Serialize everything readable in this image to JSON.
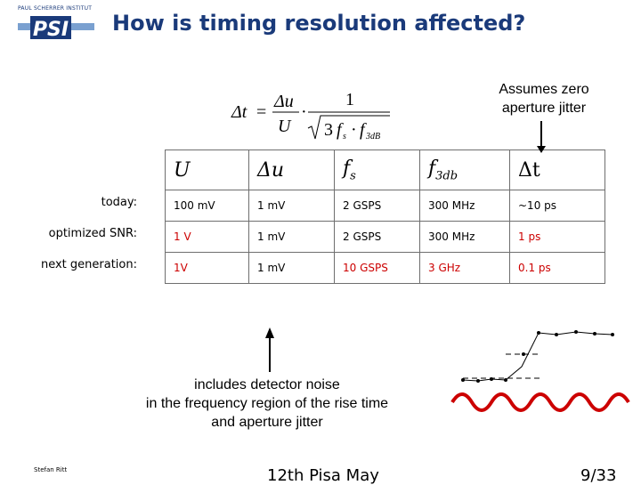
{
  "header": {
    "logo_top_text": "PAUL SCHERRER INSTITUT",
    "logo_letters": "PSI",
    "title": "How is timing resolution affected?"
  },
  "callout_right": {
    "line1": "Assumes zero",
    "line2": "aperture jitter"
  },
  "formula": {
    "lhs": "Δt",
    "equals": "=",
    "num1": "Δu",
    "den1": "U",
    "dot": "·",
    "num2": "1",
    "sqrt_three": "3",
    "fs": "f",
    "fs_sub": "s",
    "f3db": "f",
    "f3db_sub": "3dB"
  },
  "table": {
    "headers": [
      {
        "main": "U",
        "sub": ""
      },
      {
        "main": "Δu",
        "sub": ""
      },
      {
        "main": "f",
        "sub": "s"
      },
      {
        "main": "f",
        "sub": "3db"
      },
      {
        "main": "Δt",
        "sub": ""
      }
    ],
    "rows": [
      {
        "label": "today:",
        "cells": [
          "100 mV",
          "1 mV",
          "2 GSPS",
          "300 MHz",
          "~10 ps"
        ]
      },
      {
        "label": "optimized SNR:",
        "cells": [
          "1 V",
          "1 mV",
          "2 GSPS",
          "300 MHz",
          "1 ps"
        ]
      },
      {
        "label": "next generation:",
        "cells": [
          "1V",
          "1 mV",
          "10 GSPS",
          "3 GHz",
          "0.1 ps"
        ]
      }
    ],
    "highlight_color": "#cc0000"
  },
  "note": {
    "line1": "includes detector noise",
    "line2": "in the frequency region of the rise time",
    "line3": "and aperture jitter"
  },
  "footer": {
    "author": "Stefan Ritt",
    "event": "12th Pisa May",
    "page": "9/33"
  },
  "colors": {
    "title": "#1a3a7a",
    "noise_wave": "#cc0000"
  }
}
